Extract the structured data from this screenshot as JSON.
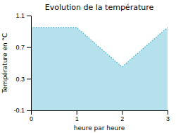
{
  "chart_data": {
    "type": "area",
    "title": "Evolution de la température",
    "x_label": "heure par heure",
    "y_label": "Température en °C",
    "x": [
      0,
      1,
      2,
      3
    ],
    "values": [
      0.95,
      0.95,
      0.45,
      0.95
    ],
    "color": "#5bbcd6",
    "line_style": "dotted",
    "xlim": [
      0,
      3
    ],
    "ylim": [
      -0.1,
      1.1
    ],
    "xticks": [
      0,
      1,
      2,
      3
    ],
    "yticks": [
      -0.1,
      0.3,
      0.7,
      1.1
    ],
    "grid": false
  }
}
